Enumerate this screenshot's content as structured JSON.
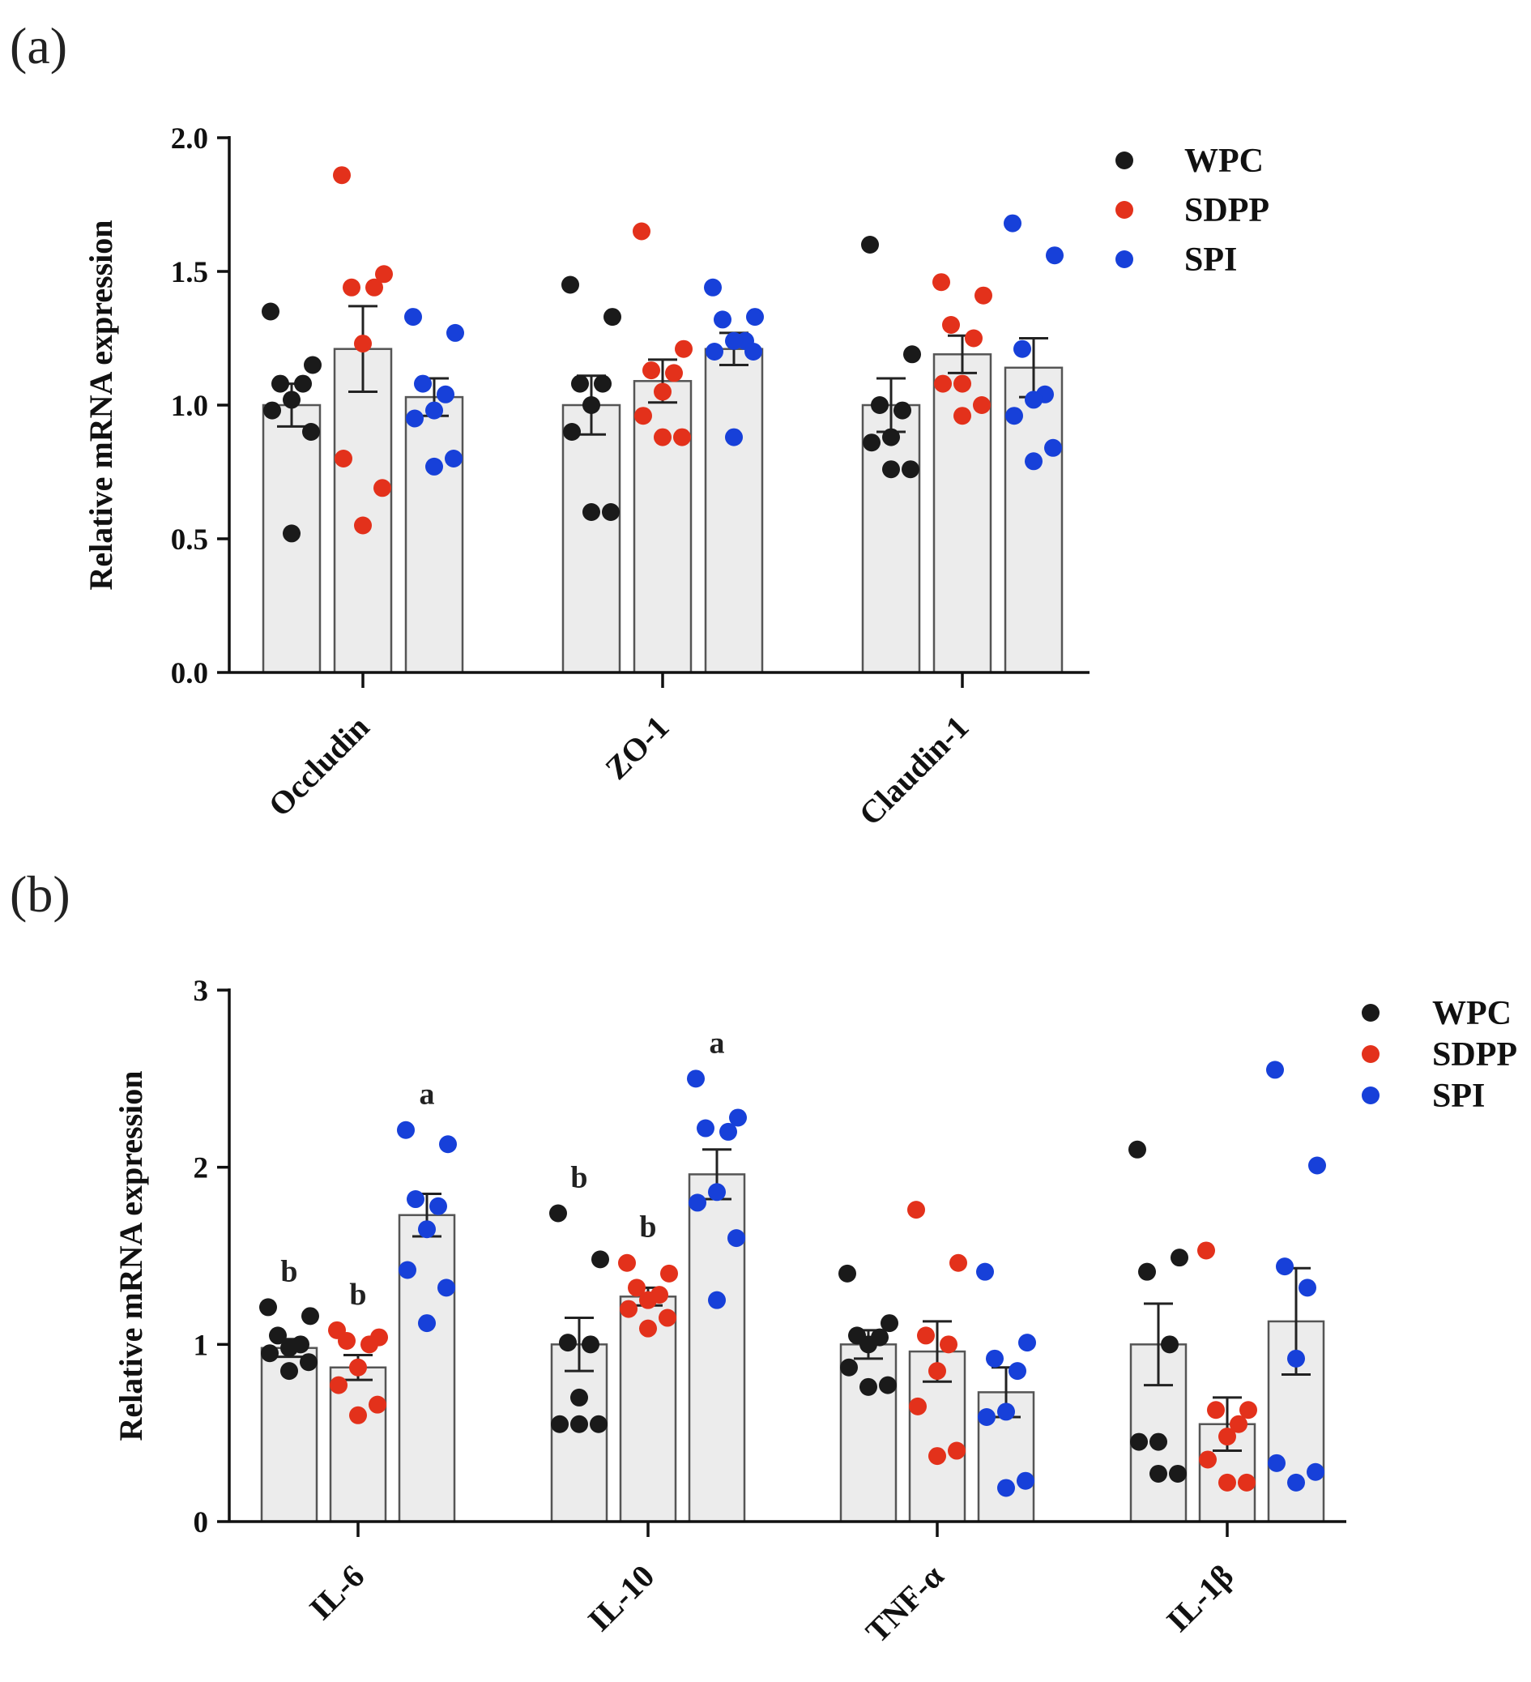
{
  "chart_data": [
    {
      "panel_label": "(a)",
      "type": "bar",
      "ylabel": "Relative mRNA expression",
      "ylim": [
        0,
        2.0
      ],
      "yticks": [
        "0.0",
        "0.5",
        "1.0",
        "1.5",
        "2.0"
      ],
      "categories": [
        "Occludin",
        "ZO-1",
        "Claudin-1"
      ],
      "legend_position": "top-right",
      "series": [
        {
          "name": "WPC",
          "color": "#1a1a1a",
          "means": [
            1.0,
            1.0,
            1.0
          ],
          "sem": [
            0.08,
            0.11,
            0.1
          ],
          "points": [
            [
              1.35,
              1.15,
              1.08,
              1.08,
              1.02,
              0.98,
              0.9,
              0.52
            ],
            [
              1.45,
              1.33,
              1.08,
              1.08,
              1.0,
              0.9,
              0.6,
              0.6
            ],
            [
              1.6,
              1.19,
              1.0,
              0.98,
              0.88,
              0.86,
              0.76,
              0.76
            ]
          ],
          "letters": [
            "",
            "",
            ""
          ]
        },
        {
          "name": "SDPP",
          "color": "#e3311b",
          "means": [
            1.21,
            1.09,
            1.19
          ],
          "sem": [
            0.16,
            0.08,
            0.07
          ],
          "points": [
            [
              1.86,
              1.49,
              1.44,
              1.44,
              1.23,
              0.8,
              0.69,
              0.55
            ],
            [
              1.65,
              1.21,
              1.13,
              1.12,
              1.05,
              0.96,
              0.88,
              0.88
            ],
            [
              1.46,
              1.41,
              1.3,
              1.25,
              1.08,
              1.08,
              1.0,
              0.96
            ]
          ],
          "letters": [
            "",
            "",
            ""
          ]
        },
        {
          "name": "SPI",
          "color": "#1740d9",
          "means": [
            1.03,
            1.21,
            1.14
          ],
          "sem": [
            0.07,
            0.06,
            0.11
          ],
          "points": [
            [
              1.33,
              1.27,
              1.08,
              1.04,
              0.98,
              0.95,
              0.8,
              0.77
            ],
            [
              1.44,
              1.33,
              1.32,
              1.24,
              1.24,
              1.2,
              1.2,
              0.88
            ],
            [
              1.68,
              1.56,
              1.21,
              1.04,
              1.02,
              0.96,
              0.84,
              0.79
            ]
          ],
          "letters": [
            "",
            "",
            ""
          ]
        }
      ]
    },
    {
      "panel_label": "(b)",
      "type": "bar",
      "ylabel": "Relative mRNA expression",
      "ylim": [
        0,
        3
      ],
      "yticks": [
        "0",
        "1",
        "2",
        "3"
      ],
      "categories": [
        "IL-6",
        "IL-10",
        "TNF-α",
        "IL-1β"
      ],
      "legend_position": "top-right",
      "series": [
        {
          "name": "WPC",
          "color": "#1a1a1a",
          "means": [
            0.98,
            1.0,
            1.0,
            1.0
          ],
          "sem": [
            0.05,
            0.15,
            0.08,
            0.23
          ],
          "points": [
            [
              1.21,
              1.16,
              1.05,
              1.0,
              0.98,
              0.95,
              0.9,
              0.85
            ],
            [
              1.74,
              1.48,
              1.01,
              1.0,
              0.7,
              0.55,
              0.55,
              0.55
            ],
            [
              1.4,
              1.12,
              1.05,
              1.04,
              1.0,
              0.87,
              0.77,
              0.76
            ],
            [
              2.1,
              1.49,
              1.41,
              1.0,
              0.45,
              0.45,
              0.27,
              0.27
            ]
          ],
          "letters": [
            "b",
            "b",
            "",
            ""
          ]
        },
        {
          "name": "SDPP",
          "color": "#e3311b",
          "means": [
            0.87,
            1.27,
            0.96,
            0.55
          ],
          "sem": [
            0.07,
            0.05,
            0.17,
            0.15
          ],
          "points": [
            [
              1.08,
              1.04,
              1.02,
              1.0,
              0.87,
              0.77,
              0.66,
              0.6
            ],
            [
              1.46,
              1.4,
              1.32,
              1.28,
              1.25,
              1.2,
              1.15,
              1.09
            ],
            [
              1.76,
              1.46,
              1.05,
              1.0,
              0.85,
              0.65,
              0.4,
              0.37
            ],
            [
              1.53,
              0.63,
              0.63,
              0.55,
              0.48,
              0.35,
              0.22,
              0.22
            ]
          ],
          "letters": [
            "b",
            "b",
            "",
            ""
          ]
        },
        {
          "name": "SPI",
          "color": "#1740d9",
          "means": [
            1.73,
            1.96,
            0.73,
            1.13
          ],
          "sem": [
            0.12,
            0.14,
            0.14,
            0.3
          ],
          "points": [
            [
              2.21,
              2.13,
              1.82,
              1.78,
              1.65,
              1.42,
              1.32,
              1.12
            ],
            [
              2.5,
              2.28,
              2.22,
              2.2,
              1.86,
              1.8,
              1.6,
              1.25
            ],
            [
              1.41,
              1.01,
              0.92,
              0.85,
              0.62,
              0.59,
              0.23,
              0.19
            ],
            [
              2.55,
              2.01,
              1.44,
              1.32,
              0.92,
              0.33,
              0.28,
              0.22
            ]
          ],
          "letters": [
            "a",
            "a",
            "",
            ""
          ]
        }
      ]
    }
  ]
}
